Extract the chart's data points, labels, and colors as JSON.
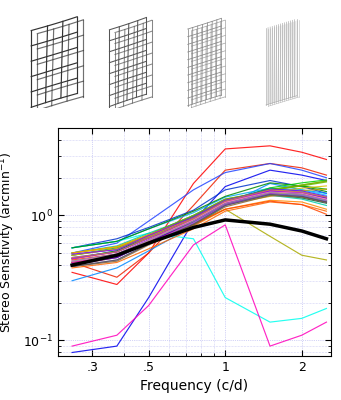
{
  "xlabel": "Frequency (c/d)",
  "ylabel": "Stereo Sensitivity (arcmin$^{-1}$)",
  "xlim": [
    0.22,
    2.6
  ],
  "ylim": [
    0.075,
    5.0
  ],
  "frequencies": [
    0.25,
    0.375,
    0.5,
    0.75,
    1.0,
    1.5,
    2.0,
    2.5
  ],
  "lines": [
    {
      "color": "#ff0000",
      "values": [
        0.35,
        0.28,
        0.5,
        1.8,
        3.4,
        3.6,
        3.2,
        2.8
      ]
    },
    {
      "color": "#ee2200",
      "values": [
        0.42,
        0.32,
        0.5,
        1.2,
        2.3,
        2.6,
        2.4,
        2.1
      ]
    },
    {
      "color": "#0000ee",
      "values": [
        0.08,
        0.09,
        0.22,
        0.9,
        1.7,
        2.3,
        2.1,
        1.9
      ]
    },
    {
      "color": "#2244ff",
      "values": [
        0.5,
        0.6,
        0.9,
        1.6,
        2.2,
        2.6,
        2.3,
        2.0
      ]
    },
    {
      "color": "#0033cc",
      "values": [
        0.55,
        0.65,
        0.8,
        1.1,
        1.6,
        1.9,
        1.7,
        1.5
      ]
    },
    {
      "color": "#0088ff",
      "values": [
        0.3,
        0.38,
        0.52,
        0.82,
        1.2,
        1.8,
        1.6,
        1.5
      ]
    },
    {
      "color": "#00aaee",
      "values": [
        0.55,
        0.62,
        0.78,
        1.05,
        1.4,
        1.65,
        1.55,
        1.4
      ]
    },
    {
      "color": "#00ccff",
      "values": [
        0.48,
        0.54,
        0.68,
        0.95,
        1.3,
        1.65,
        1.6,
        1.45
      ]
    },
    {
      "color": "#00ffee",
      "values": [
        0.55,
        0.62,
        0.72,
        0.65,
        0.22,
        0.14,
        0.15,
        0.18
      ]
    },
    {
      "color": "#00ccaa",
      "values": [
        0.5,
        0.57,
        0.72,
        0.98,
        1.25,
        1.45,
        1.35,
        1.2
      ]
    },
    {
      "color": "#009977",
      "values": [
        0.48,
        0.55,
        0.7,
        1.0,
        1.35,
        1.55,
        1.45,
        1.3
      ]
    },
    {
      "color": "#007755",
      "values": [
        0.45,
        0.52,
        0.66,
        0.95,
        1.3,
        1.52,
        1.42,
        1.28
      ]
    },
    {
      "color": "#006633",
      "values": [
        0.42,
        0.48,
        0.62,
        0.9,
        1.22,
        1.48,
        1.38,
        1.25
      ]
    },
    {
      "color": "#008800",
      "values": [
        0.55,
        0.62,
        0.78,
        1.08,
        1.42,
        1.82,
        1.72,
        1.55
      ]
    },
    {
      "color": "#00aa00",
      "values": [
        0.45,
        0.52,
        0.68,
        0.98,
        1.32,
        1.62,
        1.72,
        1.62
      ]
    },
    {
      "color": "#00cc00",
      "values": [
        0.4,
        0.46,
        0.61,
        0.88,
        1.26,
        1.66,
        1.82,
        1.92
      ]
    },
    {
      "color": "#44cc00",
      "values": [
        0.42,
        0.48,
        0.63,
        0.9,
        1.28,
        1.6,
        1.75,
        1.88
      ]
    },
    {
      "color": "#66bb00",
      "values": [
        0.48,
        0.54,
        0.68,
        0.97,
        1.32,
        1.58,
        1.72,
        1.85
      ]
    },
    {
      "color": "#88aa00",
      "values": [
        0.5,
        0.56,
        0.7,
        1.0,
        1.35,
        1.58,
        1.75,
        1.88
      ]
    },
    {
      "color": "#aaaa00",
      "values": [
        0.5,
        0.56,
        0.66,
        0.86,
        1.12,
        0.68,
        0.48,
        0.44
      ]
    },
    {
      "color": "#ccaa00",
      "values": [
        0.45,
        0.51,
        0.66,
        0.92,
        1.22,
        1.42,
        1.58,
        1.62
      ]
    },
    {
      "color": "#ddbb00",
      "values": [
        0.48,
        0.54,
        0.68,
        0.95,
        1.28,
        1.52,
        1.65,
        1.72
      ]
    },
    {
      "color": "#ffaa00",
      "values": [
        0.5,
        0.56,
        0.7,
        0.94,
        1.27,
        1.52,
        1.48,
        1.32
      ]
    },
    {
      "color": "#ff8800",
      "values": [
        0.42,
        0.47,
        0.6,
        0.82,
        1.12,
        1.32,
        1.28,
        1.12
      ]
    },
    {
      "color": "#ff6600",
      "values": [
        0.38,
        0.42,
        0.54,
        0.78,
        1.08,
        1.28,
        1.22,
        1.08
      ]
    },
    {
      "color": "#ff4400",
      "values": [
        0.44,
        0.49,
        0.62,
        0.84,
        1.12,
        1.3,
        1.22,
        1.02
      ]
    },
    {
      "color": "#ff00bb",
      "values": [
        0.09,
        0.11,
        0.19,
        0.58,
        0.84,
        0.09,
        0.11,
        0.14
      ]
    },
    {
      "color": "#ee0099",
      "values": [
        0.4,
        0.46,
        0.61,
        0.87,
        1.22,
        1.57,
        1.47,
        1.32
      ]
    },
    {
      "color": "#dd00cc",
      "values": [
        0.42,
        0.48,
        0.63,
        0.9,
        1.25,
        1.58,
        1.52,
        1.38
      ]
    },
    {
      "color": "#cc00ff",
      "values": [
        0.45,
        0.51,
        0.66,
        0.92,
        1.27,
        1.57,
        1.52,
        1.37
      ]
    },
    {
      "color": "#aa00ff",
      "values": [
        0.43,
        0.49,
        0.64,
        0.9,
        1.22,
        1.5,
        1.42,
        1.27
      ]
    },
    {
      "color": "#8800ff",
      "values": [
        0.49,
        0.53,
        0.69,
        0.97,
        1.32,
        1.57,
        1.47,
        1.32
      ]
    },
    {
      "color": "#6600ff",
      "values": [
        0.46,
        0.51,
        0.66,
        0.94,
        1.3,
        1.62,
        1.57,
        1.42
      ]
    },
    {
      "color": "#4400cc",
      "values": [
        0.41,
        0.46,
        0.61,
        0.9,
        1.24,
        1.54,
        1.5,
        1.37
      ]
    },
    {
      "color": "#8866ff",
      "values": [
        0.39,
        0.44,
        0.59,
        0.87,
        1.2,
        1.47,
        1.44,
        1.3
      ]
    },
    {
      "color": "#ff88bb",
      "values": [
        0.43,
        0.48,
        0.63,
        0.92,
        1.27,
        1.54,
        1.5,
        1.35
      ]
    },
    {
      "color": "#cc8844",
      "values": [
        0.46,
        0.51,
        0.66,
        0.94,
        1.3,
        1.6,
        1.54,
        1.4
      ]
    },
    {
      "color": "#886633",
      "values": [
        0.39,
        0.43,
        0.58,
        0.84,
        1.17,
        1.44,
        1.4,
        1.27
      ]
    },
    {
      "color": "#999999",
      "values": [
        0.43,
        0.49,
        0.63,
        0.9,
        1.24,
        1.52,
        1.47,
        1.32
      ]
    },
    {
      "color": "#555555",
      "values": [
        0.39,
        0.44,
        0.59,
        0.85,
        1.2,
        1.47,
        1.42,
        1.28
      ]
    }
  ],
  "mean_values": [
    0.4,
    0.48,
    0.6,
    0.8,
    0.92,
    0.85,
    0.75,
    0.65
  ],
  "mean_color": "#000000",
  "mean_lw": 2.5,
  "grid_color": "#aaaaee",
  "tick_fontsize": 9,
  "label_fontsize": 10
}
